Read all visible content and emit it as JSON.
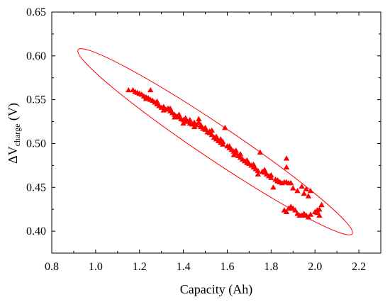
{
  "chart_data": {
    "type": "scatter",
    "xlabel": "Capacity (Ah)",
    "ylabel": {
      "main": "ΔV",
      "sub": "charge",
      "unit": " (V)"
    },
    "xlim": [
      0.8,
      2.3
    ],
    "ylim": [
      0.375,
      0.65
    ],
    "x_ticks": [
      "0.8",
      "1.0",
      "1.2",
      "1.4",
      "1.6",
      "1.8",
      "2.0",
      "2.2"
    ],
    "x_tick_values": [
      0.8,
      1.0,
      1.2,
      1.4,
      1.6,
      1.8,
      2.0,
      2.2
    ],
    "y_ticks": [
      "0.40",
      "0.45",
      "0.50",
      "0.55",
      "0.60",
      "0.65"
    ],
    "y_tick_values": [
      0.4,
      0.45,
      0.5,
      0.55,
      0.6,
      0.65
    ],
    "grid": false,
    "marker": "triangle",
    "color": "#ff0000",
    "series": [
      {
        "points": [
          [
            1.15,
            0.561
          ],
          [
            1.17,
            0.561
          ],
          [
            1.18,
            0.559
          ],
          [
            1.19,
            0.558
          ],
          [
            1.2,
            0.557
          ],
          [
            1.21,
            0.556
          ],
          [
            1.22,
            0.554
          ],
          [
            1.23,
            0.553
          ],
          [
            1.24,
            0.552
          ],
          [
            1.25,
            0.561
          ],
          [
            1.25,
            0.55
          ],
          [
            1.26,
            0.549
          ],
          [
            1.27,
            0.547
          ],
          [
            1.28,
            0.545
          ],
          [
            1.29,
            0.543
          ],
          [
            1.3,
            0.541
          ],
          [
            1.31,
            0.542
          ],
          [
            1.32,
            0.539
          ],
          [
            1.33,
            0.54
          ],
          [
            1.34,
            0.537
          ],
          [
            1.35,
            0.535
          ],
          [
            1.36,
            0.533
          ],
          [
            1.37,
            0.531
          ],
          [
            1.38,
            0.53
          ],
          [
            1.39,
            0.528
          ],
          [
            1.4,
            0.527
          ],
          [
            1.41,
            0.526
          ],
          [
            1.42,
            0.525
          ],
          [
            1.43,
            0.523
          ],
          [
            1.44,
            0.522
          ],
          [
            1.45,
            0.524
          ],
          [
            1.46,
            0.521
          ],
          [
            1.47,
            0.524
          ],
          [
            1.48,
            0.519
          ],
          [
            1.49,
            0.517
          ],
          [
            1.5,
            0.516
          ],
          [
            1.51,
            0.513
          ],
          [
            1.52,
            0.512
          ],
          [
            1.53,
            0.51
          ],
          [
            1.54,
            0.507
          ],
          [
            1.55,
            0.505
          ],
          [
            1.56,
            0.503
          ],
          [
            1.57,
            0.501
          ],
          [
            1.58,
            0.499
          ],
          [
            1.59,
            0.518
          ],
          [
            1.6,
            0.497
          ],
          [
            1.61,
            0.495
          ],
          [
            1.62,
            0.493
          ],
          [
            1.63,
            0.491
          ],
          [
            1.64,
            0.489
          ],
          [
            1.65,
            0.486
          ],
          [
            1.66,
            0.484
          ],
          [
            1.67,
            0.482
          ],
          [
            1.68,
            0.48
          ],
          [
            1.69,
            0.478
          ],
          [
            1.7,
            0.477
          ],
          [
            1.71,
            0.475
          ],
          [
            1.72,
            0.473
          ],
          [
            1.73,
            0.471
          ],
          [
            1.74,
            0.469
          ],
          [
            1.75,
            0.49
          ],
          [
            1.76,
            0.468
          ],
          [
            1.77,
            0.467
          ],
          [
            1.78,
            0.465
          ],
          [
            1.79,
            0.463
          ],
          [
            1.8,
            0.461
          ],
          [
            1.81,
            0.45
          ],
          [
            1.82,
            0.459
          ],
          [
            1.83,
            0.457
          ],
          [
            1.84,
            0.456
          ],
          [
            1.85,
            0.455
          ],
          [
            1.86,
            0.456
          ],
          [
            1.87,
            0.483
          ],
          [
            1.87,
            0.473
          ],
          [
            1.87,
            0.456
          ],
          [
            1.88,
            0.455
          ],
          [
            1.89,
            0.455
          ],
          [
            1.86,
            0.424
          ],
          [
            1.87,
            0.422
          ],
          [
            1.88,
            0.426
          ],
          [
            1.89,
            0.428
          ],
          [
            1.9,
            0.426
          ],
          [
            1.91,
            0.424
          ],
          [
            1.92,
            0.42
          ],
          [
            1.93,
            0.418
          ],
          [
            1.94,
            0.418
          ],
          [
            1.95,
            0.42
          ],
          [
            1.96,
            0.418
          ],
          [
            1.97,
            0.416
          ],
          [
            1.98,
            0.419
          ],
          [
            1.94,
            0.451
          ],
          [
            1.96,
            0.448
          ],
          [
            1.98,
            0.446
          ],
          [
            2.0,
            0.422
          ],
          [
            2.01,
            0.421
          ],
          [
            2.02,
            0.425
          ],
          [
            2.03,
            0.43
          ],
          [
            2.02,
            0.418
          ],
          [
            2.01,
            0.424
          ],
          [
            1.47,
            0.528
          ],
          [
            1.43,
            0.527
          ],
          [
            1.41,
            0.529
          ],
          [
            1.38,
            0.533
          ],
          [
            1.36,
            0.53
          ],
          [
            1.52,
            0.514
          ],
          [
            1.55,
            0.508
          ],
          [
            1.58,
            0.502
          ],
          [
            1.61,
            0.497
          ],
          [
            1.64,
            0.492
          ],
          [
            1.66,
            0.488
          ],
          [
            1.69,
            0.481
          ],
          [
            1.72,
            0.476
          ],
          [
            1.77,
            0.47
          ],
          [
            1.8,
            0.464
          ],
          [
            1.83,
            0.458
          ],
          [
            1.9,
            0.449
          ],
          [
            1.92,
            0.446
          ],
          [
            1.95,
            0.443
          ],
          [
            1.97,
            0.44
          ],
          [
            1.48,
            0.521
          ],
          [
            1.5,
            0.518
          ],
          [
            1.53,
            0.515
          ],
          [
            1.45,
            0.519
          ],
          [
            1.34,
            0.54
          ],
          [
            1.28,
            0.548
          ],
          [
            1.23,
            0.551
          ],
          [
            1.31,
            0.538
          ],
          [
            1.4,
            0.523
          ],
          [
            1.57,
            0.505
          ],
          [
            1.63,
            0.487
          ],
          [
            1.74,
            0.465
          ]
        ]
      }
    ],
    "annotations": [
      {
        "type": "ellipse",
        "center": [
          1.55,
          0.502
        ],
        "endpoints": [
          [
            0.92,
            0.607
          ],
          [
            2.17,
            0.397
          ]
        ]
      }
    ]
  }
}
